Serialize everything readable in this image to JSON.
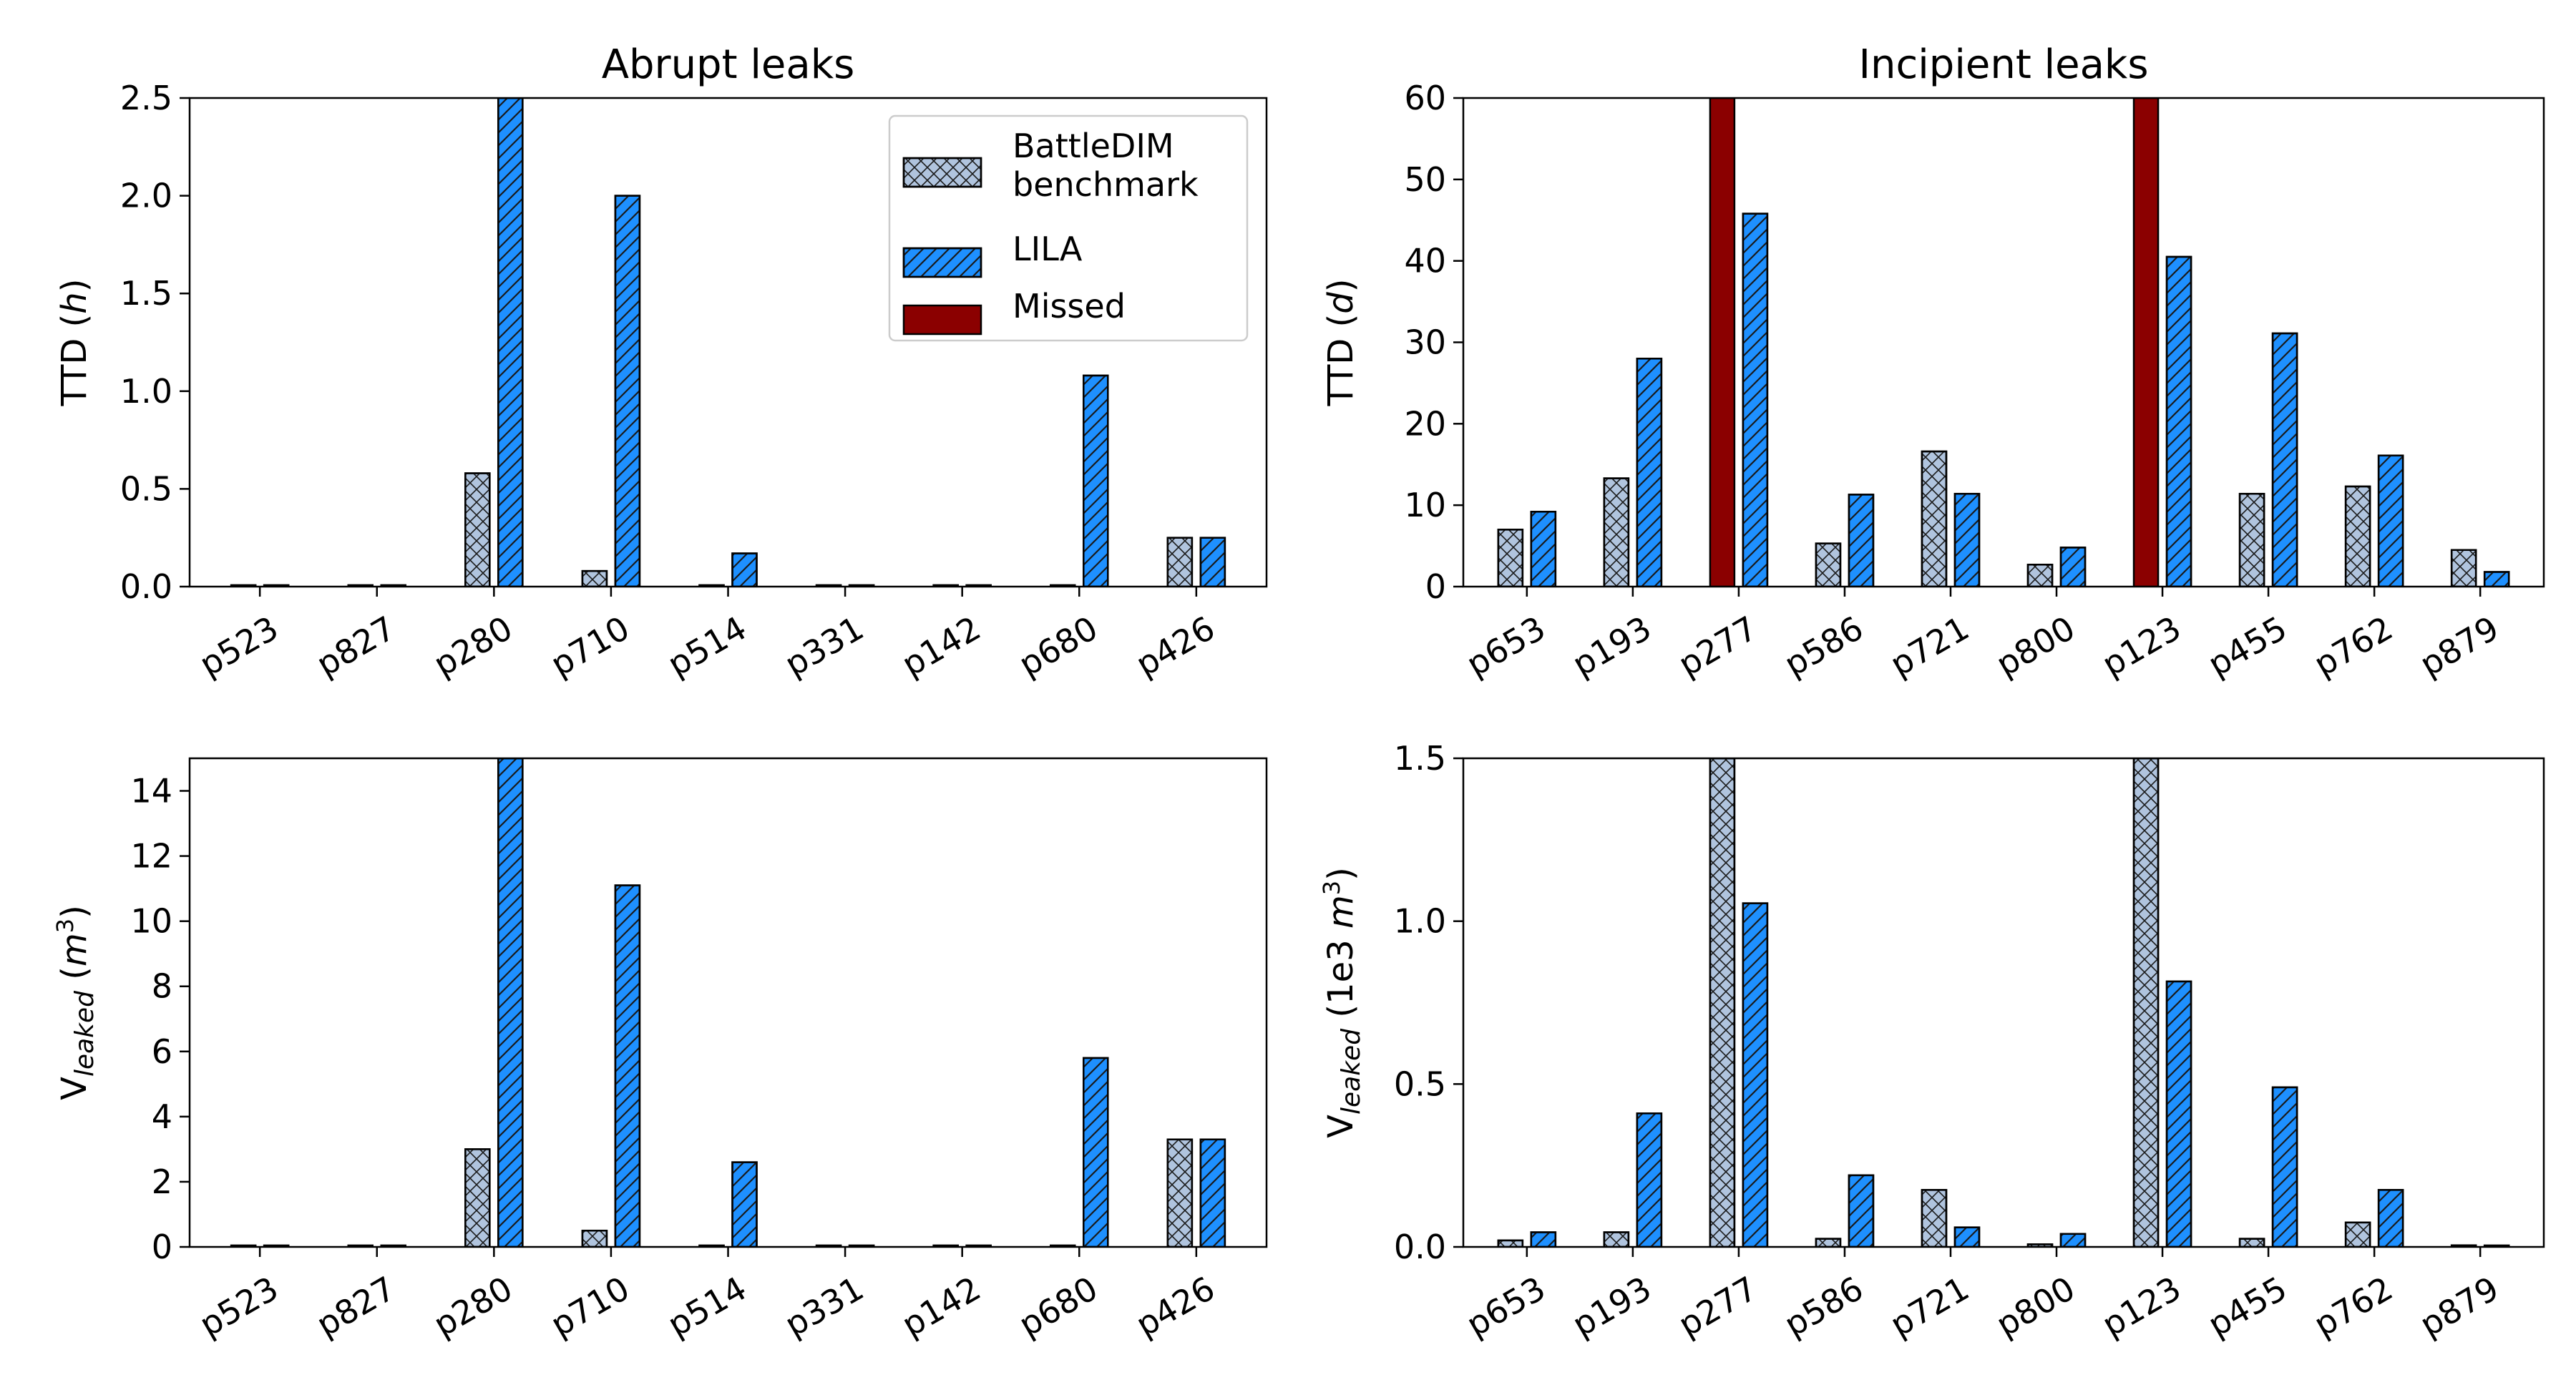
{
  "legend": {
    "entries": [
      {
        "label_lines": [
          "BattleDIM",
          "benchmark"
        ],
        "color": "#b0c4de",
        "hatch": "crosshatch"
      },
      {
        "label_lines": [
          "LILA"
        ],
        "color": "#1e90ff",
        "hatch": "diagonal"
      },
      {
        "label_lines": [
          "Missed"
        ],
        "color": "#8b0000",
        "hatch": "none"
      }
    ]
  },
  "chart_data": [
    {
      "type": "bar",
      "title": "Abrupt leaks",
      "ylabel": {
        "main": "TTD (",
        "italic": "h",
        "end": ")"
      },
      "ylim": [
        0,
        2.5
      ],
      "yticks": [
        "0.0",
        "0.5",
        "1.0",
        "1.5",
        "2.0",
        "2.5"
      ],
      "categories": [
        "p523",
        "p827",
        "p280",
        "p710",
        "p514",
        "p331",
        "p142",
        "p680",
        "p426"
      ],
      "series": [
        {
          "name": "BattleDIM benchmark",
          "values": [
            0,
            0,
            0.58,
            0.08,
            0,
            0,
            0,
            0,
            0.25
          ]
        },
        {
          "name": "LILA",
          "values": [
            0,
            0,
            2.5,
            2.0,
            0.17,
            0,
            0,
            1.08,
            0.25
          ]
        }
      ],
      "missed": [],
      "legend": "top-right"
    },
    {
      "type": "bar",
      "title": "Incipient leaks",
      "ylabel": {
        "main": "TTD (",
        "italic": "d",
        "end": ")"
      },
      "ylim": [
        0,
        60
      ],
      "yticks": [
        "0",
        "10",
        "20",
        "30",
        "40",
        "50",
        "60"
      ],
      "categories": [
        "p653",
        "p193",
        "p277",
        "p586",
        "p721",
        "p800",
        "p123",
        "p455",
        "p762",
        "p879"
      ],
      "series": [
        {
          "name": "BattleDIM benchmark",
          "values": [
            7,
            13.3,
            60,
            5.3,
            16.6,
            2.7,
            60,
            11.4,
            12.3,
            4.5
          ]
        },
        {
          "name": "LILA",
          "values": [
            9.2,
            28,
            45.8,
            11.3,
            11.4,
            4.8,
            40.5,
            31.1,
            16.1,
            1.8
          ]
        }
      ],
      "missed": [
        2,
        6
      ],
      "legend": "none"
    },
    {
      "type": "bar",
      "title": "",
      "ylabel": {
        "main": "V",
        "sub": "leaked",
        "unit_open": " (",
        "unit": "m",
        "sup": "3",
        "end": ")"
      },
      "ylim": [
        0,
        15
      ],
      "yticks": [
        "0",
        "2",
        "4",
        "6",
        "8",
        "10",
        "12",
        "14"
      ],
      "ytick_values": [
        0,
        2,
        4,
        6,
        8,
        10,
        12,
        14
      ],
      "categories": [
        "p523",
        "p827",
        "p280",
        "p710",
        "p514",
        "p331",
        "p142",
        "p680",
        "p426"
      ],
      "series": [
        {
          "name": "BattleDIM benchmark",
          "values": [
            0,
            0,
            3.0,
            0.5,
            0,
            0,
            0,
            0,
            3.3
          ]
        },
        {
          "name": "LILA",
          "values": [
            0,
            0,
            15,
            11.1,
            2.6,
            0,
            0,
            5.8,
            3.3
          ]
        }
      ],
      "missed": [],
      "legend": "none"
    },
    {
      "type": "bar",
      "title": "",
      "ylabel": {
        "main": "V",
        "sub": "leaked",
        "unit_open": " (1e3 ",
        "unit": "m",
        "sup": "3",
        "end": ")"
      },
      "ylim": [
        0,
        1.5
      ],
      "yticks": [
        "0.0",
        "0.5",
        "1.0",
        "1.5"
      ],
      "categories": [
        "p653",
        "p193",
        "p277",
        "p586",
        "p721",
        "p800",
        "p123",
        "p455",
        "p762",
        "p879"
      ],
      "series": [
        {
          "name": "BattleDIM benchmark",
          "values": [
            0.02,
            0.045,
            1.5,
            0.025,
            0.175,
            0.008,
            1.5,
            0.025,
            0.075,
            0.005
          ]
        },
        {
          "name": "LILA",
          "values": [
            0.045,
            0.41,
            1.055,
            0.22,
            0.06,
            0.04,
            0.815,
            0.49,
            0.175,
            0.0
          ]
        }
      ],
      "missed": [],
      "legend": "none"
    }
  ]
}
